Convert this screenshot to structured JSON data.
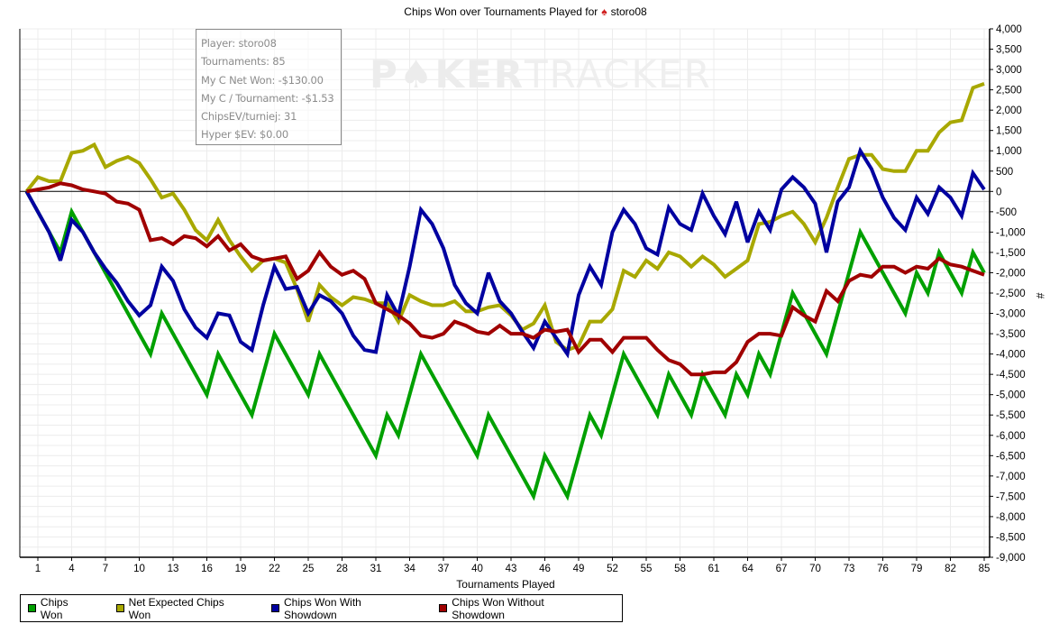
{
  "chart_data": {
    "type": "line",
    "title": "Chips Won over Tournaments Played for",
    "title_player": "storo08",
    "title_icon": "pokerstars-spade-icon",
    "xlabel": "Tournaments Played",
    "ylabel": "#",
    "xlim": [
      0,
      85
    ],
    "ylim": [
      -9000,
      4000
    ],
    "grid": true,
    "legend_position": "bottom-left",
    "x_ticks": [
      1,
      4,
      7,
      10,
      13,
      16,
      19,
      22,
      25,
      28,
      31,
      34,
      37,
      40,
      43,
      46,
      49,
      52,
      55,
      58,
      61,
      64,
      67,
      70,
      73,
      76,
      79,
      82,
      85
    ],
    "y_ticks": [
      4000,
      3500,
      3000,
      2500,
      2000,
      1500,
      1000,
      500,
      0,
      -500,
      -1000,
      -1500,
      -2000,
      -2500,
      -3000,
      -3500,
      -4000,
      -4500,
      -5000,
      -5500,
      -6000,
      -6500,
      -7000,
      -7500,
      -8000,
      -8500,
      -9000
    ],
    "y_tick_labels": [
      "4,000",
      "3,500",
      "3,000",
      "2,500",
      "2,000",
      "1,500",
      "1,000",
      "500",
      "0",
      "-500",
      "-1,000",
      "-1,500",
      "-2,000",
      "-2,500",
      "-3,000",
      "-3,500",
      "-4,000",
      "-4,500",
      "-5,000",
      "-5,500",
      "-6,000",
      "-6,500",
      "-7,000",
      "-7,500",
      "-8,000",
      "-8,500",
      "-9,000"
    ],
    "x": [
      0,
      1,
      2,
      3,
      4,
      5,
      6,
      7,
      8,
      9,
      10,
      11,
      12,
      13,
      14,
      15,
      16,
      17,
      18,
      19,
      20,
      21,
      22,
      23,
      24,
      25,
      26,
      27,
      28,
      29,
      30,
      31,
      32,
      33,
      34,
      35,
      36,
      37,
      38,
      39,
      40,
      41,
      42,
      43,
      44,
      45,
      46,
      47,
      48,
      49,
      50,
      51,
      52,
      53,
      54,
      55,
      56,
      57,
      58,
      59,
      60,
      61,
      62,
      63,
      64,
      65,
      66,
      67,
      68,
      69,
      70,
      71,
      72,
      73,
      74,
      75,
      76,
      77,
      78,
      79,
      80,
      81,
      82,
      83,
      84,
      85
    ],
    "series": [
      {
        "name": "Chips Won",
        "color": "#00a000",
        "values": [
          0,
          -500,
          -1000,
          -1500,
          -500,
          -1000,
          -1500,
          -2000,
          -2500,
          -3000,
          -3500,
          -4000,
          -3000,
          -3500,
          -4000,
          -4500,
          -5000,
          -4000,
          -4500,
          -5000,
          -5500,
          -4500,
          -3500,
          -4000,
          -4500,
          -5000,
          -4000,
          -4500,
          -5000,
          -5500,
          -6000,
          -6500,
          -5500,
          -6000,
          -5000,
          -4000,
          -4500,
          -5000,
          -5500,
          -6000,
          -6500,
          -5500,
          -6000,
          -6500,
          -7000,
          -7500,
          -6500,
          -7000,
          -7500,
          -6500,
          -5500,
          -6000,
          -5000,
          -4000,
          -4500,
          -5000,
          -5500,
          -4500,
          -5000,
          -5500,
          -4500,
          -5000,
          -5500,
          -4500,
          -5000,
          -4000,
          -4500,
          -3500,
          -2500,
          -3000,
          -3500,
          -4000,
          -3000,
          -2000,
          -1000,
          -1500,
          -2000,
          -2500,
          -3000,
          -2000,
          -2500,
          -1500,
          -2000,
          -2500,
          -1500,
          -2000
        ]
      },
      {
        "name": "Net Expected Chips Won",
        "color": "#a8a800",
        "values": [
          0,
          350,
          250,
          250,
          950,
          1000,
          1150,
          600,
          750,
          850,
          700,
          300,
          -150,
          -50,
          -450,
          -950,
          -1200,
          -700,
          -1200,
          -1600,
          -1950,
          -1700,
          -1650,
          -1750,
          -2400,
          -3200,
          -2300,
          -2600,
          -2800,
          -2600,
          -2650,
          -2750,
          -2750,
          -3200,
          -2550,
          -2700,
          -2800,
          -2800,
          -2700,
          -2950,
          -2950,
          -2850,
          -2800,
          -3050,
          -3400,
          -3250,
          -2800,
          -3700,
          -3900,
          -3800,
          -3200,
          -3200,
          -2900,
          -1950,
          -2100,
          -1700,
          -1900,
          -1500,
          -1600,
          -1850,
          -1600,
          -1800,
          -2100,
          -1900,
          -1700,
          -800,
          -750,
          -600,
          -500,
          -800,
          -1250,
          -650,
          100,
          800,
          900,
          900,
          550,
          500,
          500,
          1000,
          1000,
          1450,
          1700,
          1750,
          2550,
          2650
        ]
      },
      {
        "name": "Chips Won With Showdown",
        "color": "#0000a0",
        "values": [
          0,
          -500,
          -1000,
          -1700,
          -700,
          -1000,
          -1500,
          -1900,
          -2250,
          -2700,
          -3050,
          -2800,
          -1850,
          -2200,
          -2900,
          -3350,
          -3600,
          -3000,
          -3050,
          -3700,
          -3900,
          -2800,
          -1850,
          -2400,
          -2350,
          -3000,
          -2550,
          -2700,
          -3000,
          -3550,
          -3900,
          -3950,
          -2550,
          -3050,
          -1850,
          -450,
          -800,
          -1400,
          -2300,
          -2750,
          -3000,
          -2000,
          -2700,
          -3000,
          -3450,
          -3850,
          -3200,
          -3600,
          -4000,
          -2550,
          -1850,
          -2300,
          -1000,
          -450,
          -800,
          -1400,
          -1550,
          -400,
          -800,
          -950,
          -50,
          -600,
          -1050,
          -250,
          -1250,
          -500,
          -950,
          50,
          350,
          100,
          -300,
          -1500,
          -250,
          100,
          1000,
          550,
          -150,
          -650,
          -950,
          -150,
          -550,
          100,
          -150,
          -600,
          450,
          50
        ]
      },
      {
        "name": "Chips Won Without Showdown",
        "color": "#a00000",
        "values": [
          0,
          50,
          100,
          200,
          150,
          50,
          0,
          -50,
          -250,
          -300,
          -450,
          -1200,
          -1150,
          -1300,
          -1100,
          -1150,
          -1350,
          -1100,
          -1450,
          -1300,
          -1600,
          -1700,
          -1650,
          -1600,
          -2150,
          -1950,
          -1500,
          -1850,
          -2050,
          -1950,
          -2150,
          -2750,
          -2900,
          -3050,
          -3250,
          -3550,
          -3600,
          -3500,
          -3200,
          -3300,
          -3450,
          -3500,
          -3300,
          -3500,
          -3500,
          -3600,
          -3400,
          -3450,
          -3400,
          -3950,
          -3650,
          -3650,
          -3950,
          -3600,
          -3600,
          -3600,
          -3900,
          -4150,
          -4250,
          -4500,
          -4500,
          -4450,
          -4450,
          -4200,
          -3700,
          -3500,
          -3500,
          -3550,
          -2850,
          -3050,
          -3200,
          -2450,
          -2700,
          -2200,
          -2050,
          -2100,
          -1850,
          -1850,
          -2000,
          -1850,
          -1900,
          -1650,
          -1800,
          -1850,
          -1950,
          -2050
        ]
      }
    ]
  },
  "info_box": {
    "lines": [
      "Player: storo08",
      "Tournaments: 85",
      "My C Net Won: -$130.00",
      "My C / Tournament: -$1.53",
      "ChipsEV/turniej: 31",
      "Hyper $EV: $0.00"
    ]
  },
  "watermark": {
    "left": "P",
    "chip": "O",
    "mid": "KER",
    "right": "TRACKER"
  },
  "legend": [
    {
      "label": "Chips Won",
      "color": "#00a000"
    },
    {
      "label": "Net Expected Chips Won",
      "color": "#a8a800"
    },
    {
      "label": "Chips Won With Showdown",
      "color": "#0000a0"
    },
    {
      "label": "Chips Won Without Showdown",
      "color": "#a00000"
    }
  ]
}
